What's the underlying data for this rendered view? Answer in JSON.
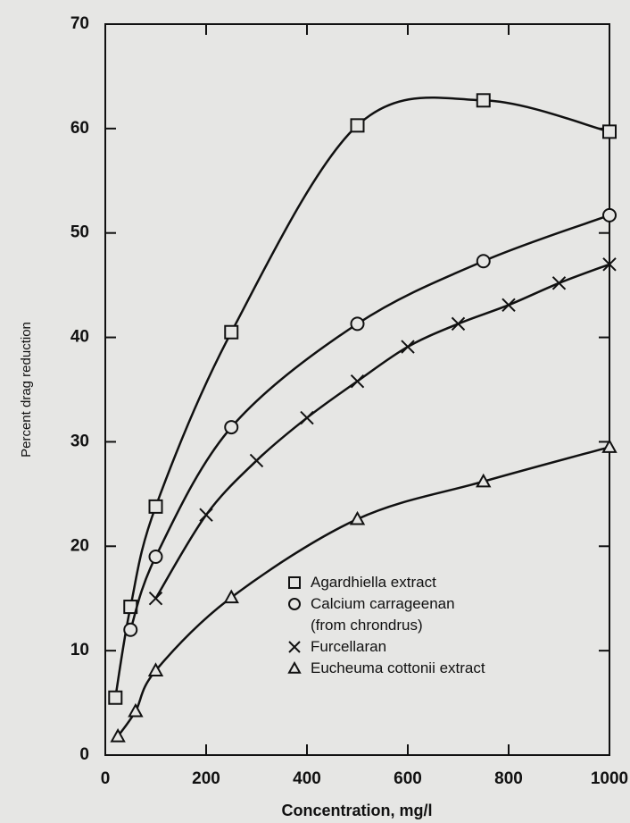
{
  "chart_data": {
    "type": "line",
    "x_label": "Concentration, mg/l",
    "y_label": "Percent drag reduction",
    "xlim": [
      0,
      1000
    ],
    "xticks": [
      0,
      200,
      400,
      600,
      800,
      1000
    ],
    "ylim": [
      0,
      70
    ],
    "yticks": [
      0,
      10,
      20,
      30,
      40,
      50,
      60,
      70
    ],
    "grid": false,
    "legend": "lower right",
    "series": [
      {
        "name": "Agardhiella extract",
        "marker": "square",
        "color": "#111111",
        "x": [
          20,
          50,
          100,
          250,
          500,
          750,
          1000
        ],
        "values": [
          5.5,
          14.2,
          23.8,
          40.5,
          60.3,
          62.7,
          59.7
        ]
      },
      {
        "name": "Calcium carrageenan\n(from chrondrus)",
        "marker": "circle",
        "color": "#111111",
        "x": [
          50,
          100,
          250,
          500,
          750,
          1000
        ],
        "values": [
          12,
          19,
          31.4,
          41.3,
          47.3,
          51.7
        ]
      },
      {
        "name": "Furcellaran",
        "marker": "x",
        "color": "#111111",
        "x": [
          100,
          200,
          300,
          400,
          500,
          600,
          700,
          800,
          900,
          1000
        ],
        "values": [
          15,
          23,
          28.2,
          32.3,
          35.8,
          39.1,
          41.3,
          43.1,
          45.2,
          47
        ]
      },
      {
        "name": "Eucheuma cottonii extract",
        "marker": "triangle",
        "color": "#111111",
        "x": [
          25,
          60,
          100,
          250,
          500,
          750,
          1000
        ],
        "values": [
          1.8,
          4.2,
          8.1,
          15.1,
          22.6,
          26.2,
          29.5
        ]
      }
    ]
  }
}
